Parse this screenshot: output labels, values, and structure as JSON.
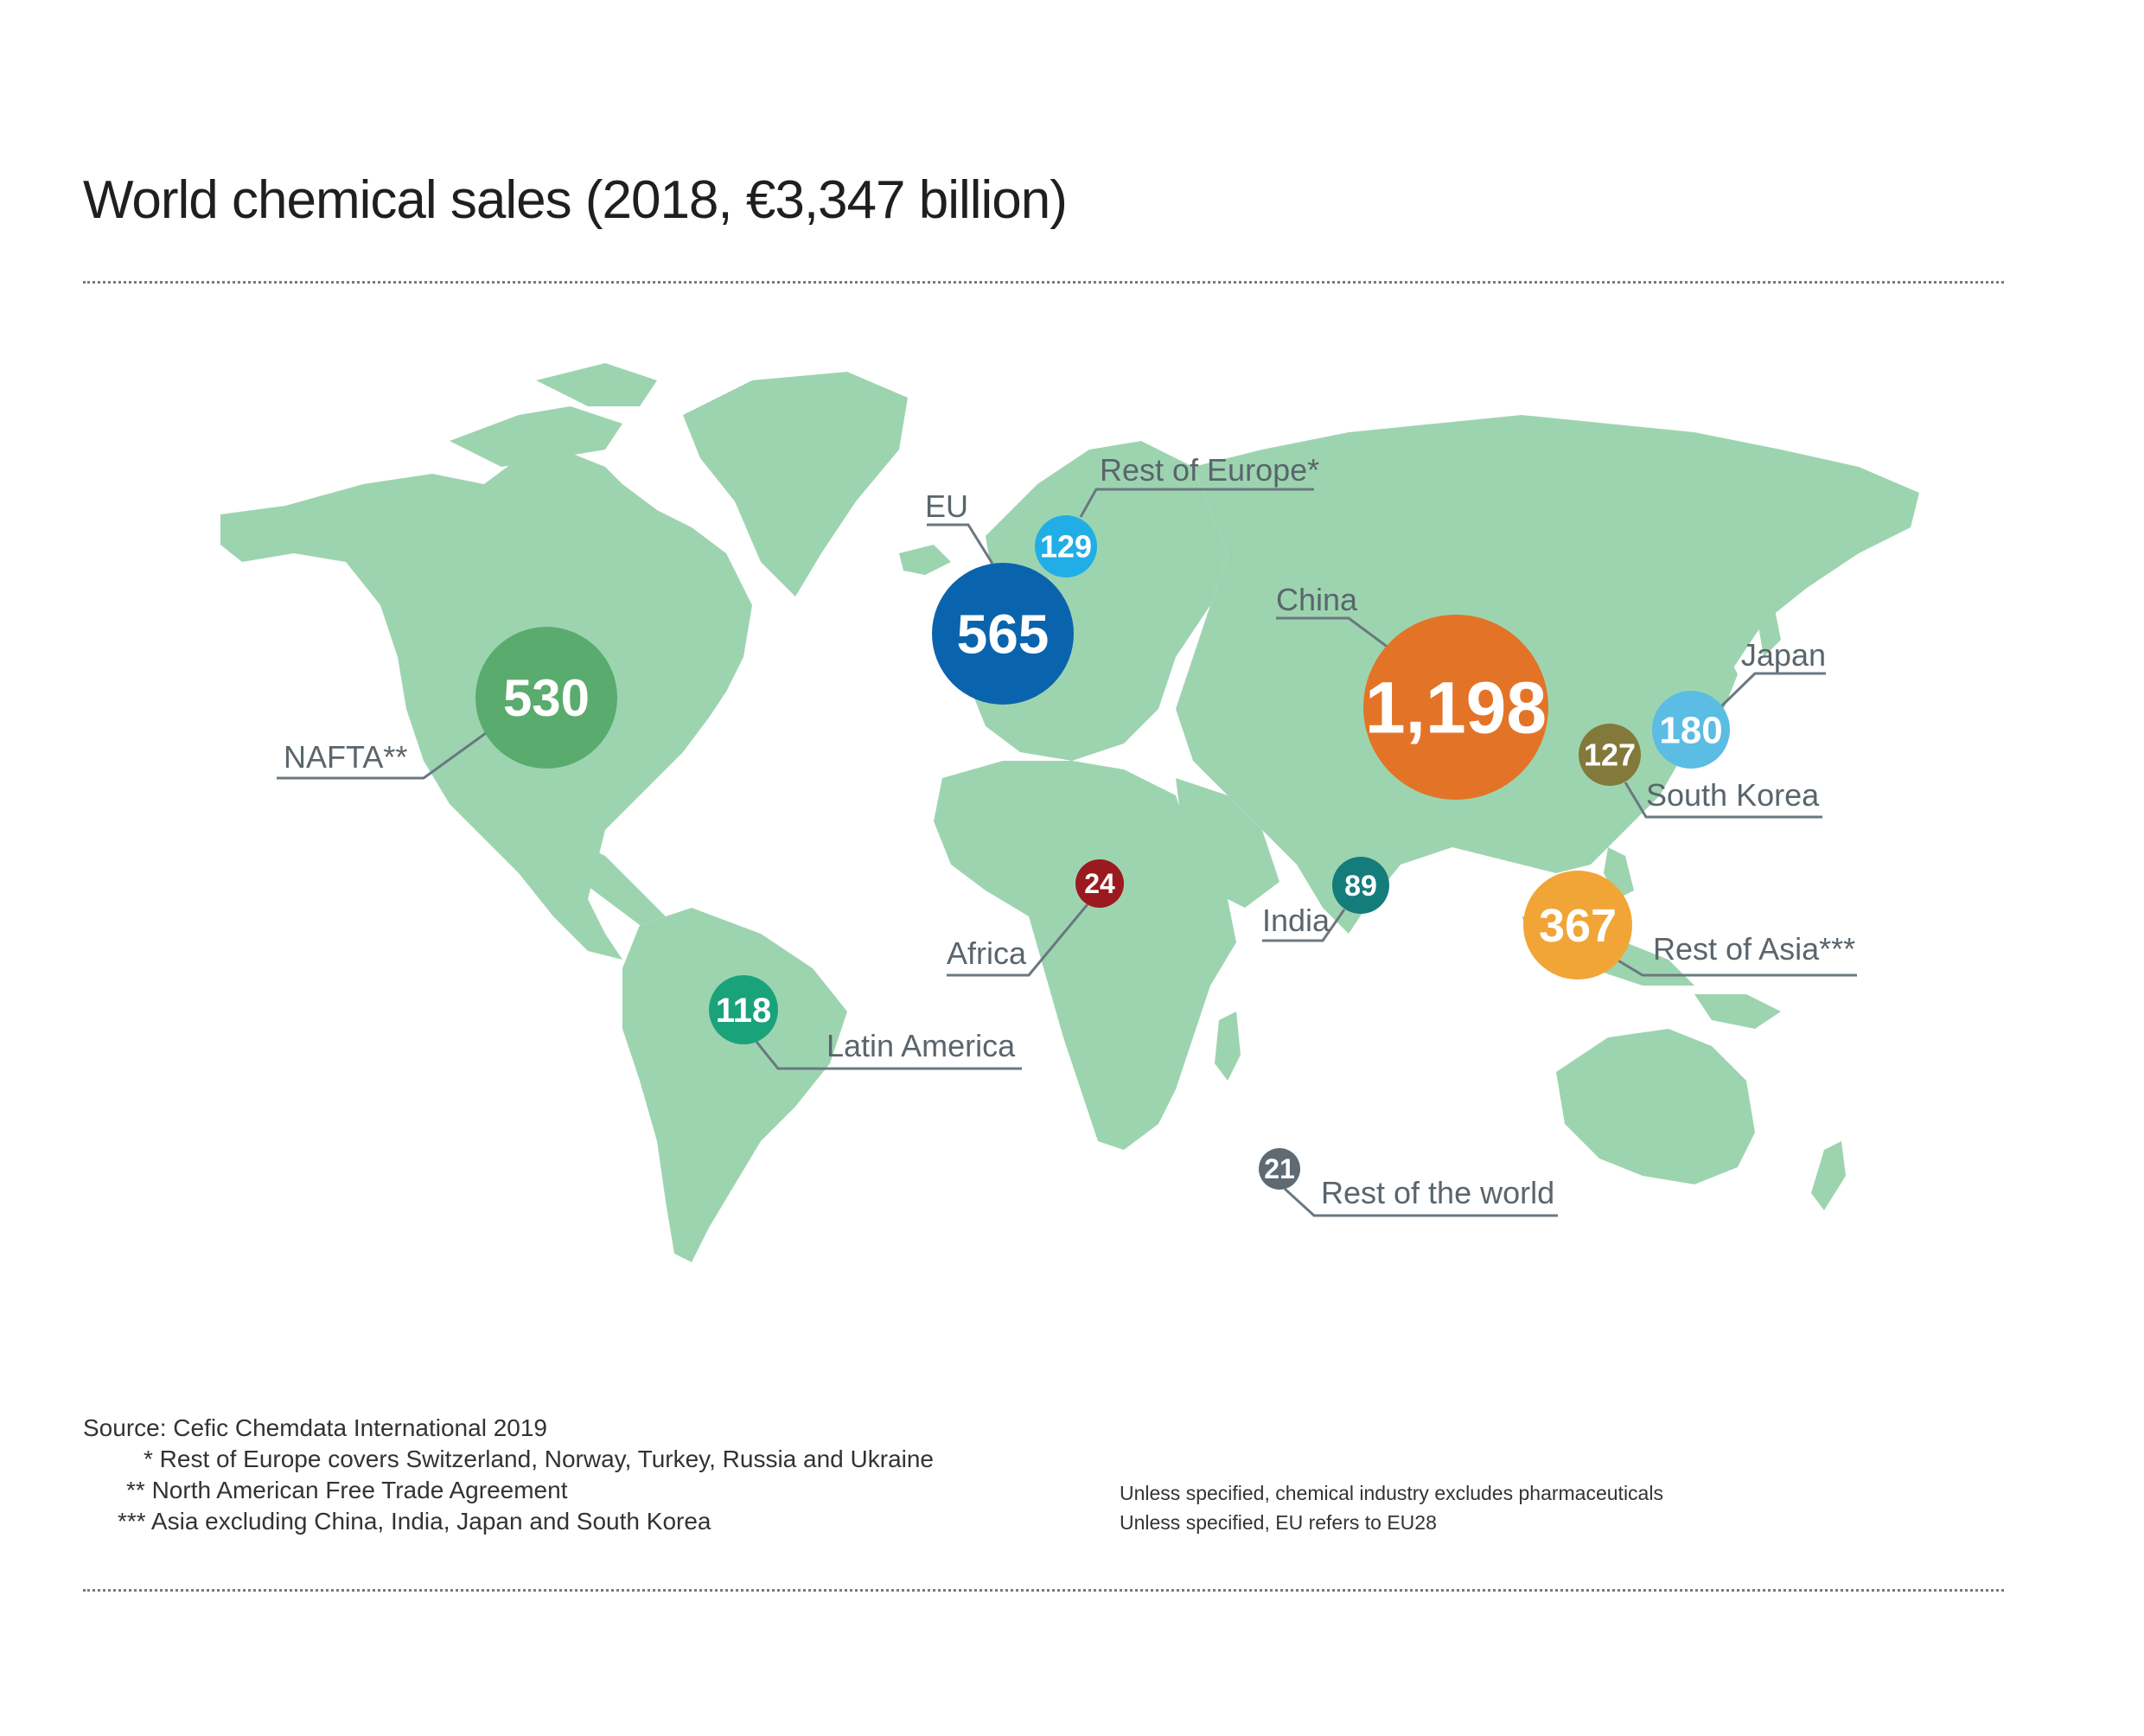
{
  "title": "World chemical sales (2018, €3,347 billion)",
  "colors": {
    "land": "#9dd4b0",
    "leader": "#6b7880",
    "label_text": "#5a656c"
  },
  "regions": [
    {
      "key": "nafta",
      "label": "NAFTA**",
      "value": "530",
      "color": "#5aab6e"
    },
    {
      "key": "eu",
      "label": "EU",
      "value": "565",
      "color": "#0a64ad"
    },
    {
      "key": "rest_of_europe",
      "label": "Rest of Europe*",
      "value": "129",
      "color": "#21aee6"
    },
    {
      "key": "china",
      "label": "China",
      "value": "1,198",
      "color": "#e37427"
    },
    {
      "key": "japan",
      "label": "Japan",
      "value": "180",
      "color": "#5bbce4"
    },
    {
      "key": "south_korea",
      "label": "South Korea",
      "value": "127",
      "color": "#83793a"
    },
    {
      "key": "india",
      "label": "India",
      "value": "89",
      "color": "#157c7c"
    },
    {
      "key": "rest_of_asia",
      "label": "Rest of Asia***",
      "value": "367",
      "color": "#f1a537"
    },
    {
      "key": "africa",
      "label": "Africa",
      "value": "24",
      "color": "#9b1a1f"
    },
    {
      "key": "latin_america",
      "label": "Latin America",
      "value": "118",
      "color": "#1aa37a"
    },
    {
      "key": "rest_of_world",
      "label": "Rest of the world",
      "value": "21",
      "color": "#5f6a72"
    }
  ],
  "notes": {
    "source": "Source: Cefic Chemdata International 2019",
    "note1": "* Rest of Europe covers Switzerland, Norway, Turkey, Russia and Ukraine",
    "note2": "** North American Free Trade Agreement",
    "note3": "*** Asia excluding China, India, Japan and South Korea",
    "right1": "Unless specified, chemical industry excludes pharmaceuticals",
    "right2": "Unless specified, EU refers to EU28"
  }
}
